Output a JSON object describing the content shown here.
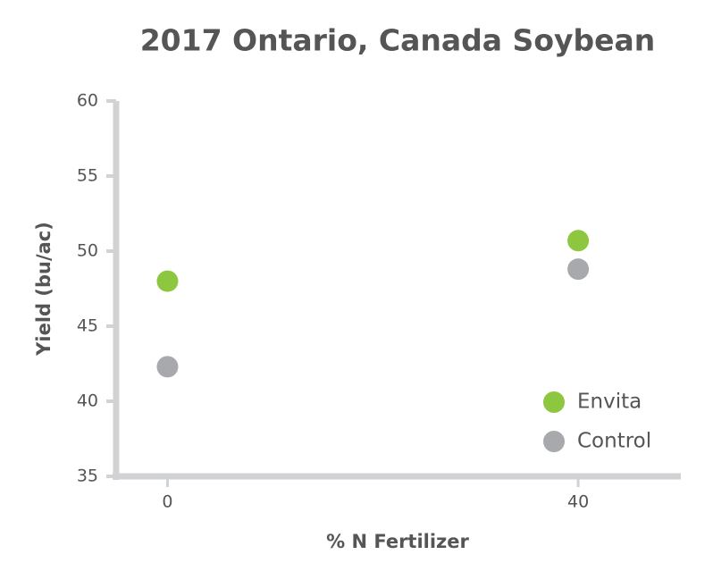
{
  "chart_data": {
    "type": "scatter",
    "title": "2017 Ontario, Canada Soybean",
    "x_label": "% N Fertilizer",
    "y_label": "Yield (bu/ac)",
    "x": [
      0,
      40
    ],
    "series": [
      {
        "name": "Envita",
        "color": "#8dc63f",
        "values": [
          48.0,
          50.7
        ]
      },
      {
        "name": "Control",
        "color": "#a7a9ac",
        "values": [
          42.3,
          48.8
        ]
      }
    ],
    "xlim": [
      -5,
      50
    ],
    "xticks": [
      0,
      40
    ],
    "ylim": [
      35,
      60
    ],
    "yticks": [
      35,
      40,
      45,
      50,
      55,
      60
    ],
    "grid": false,
    "legend": "lower right"
  }
}
